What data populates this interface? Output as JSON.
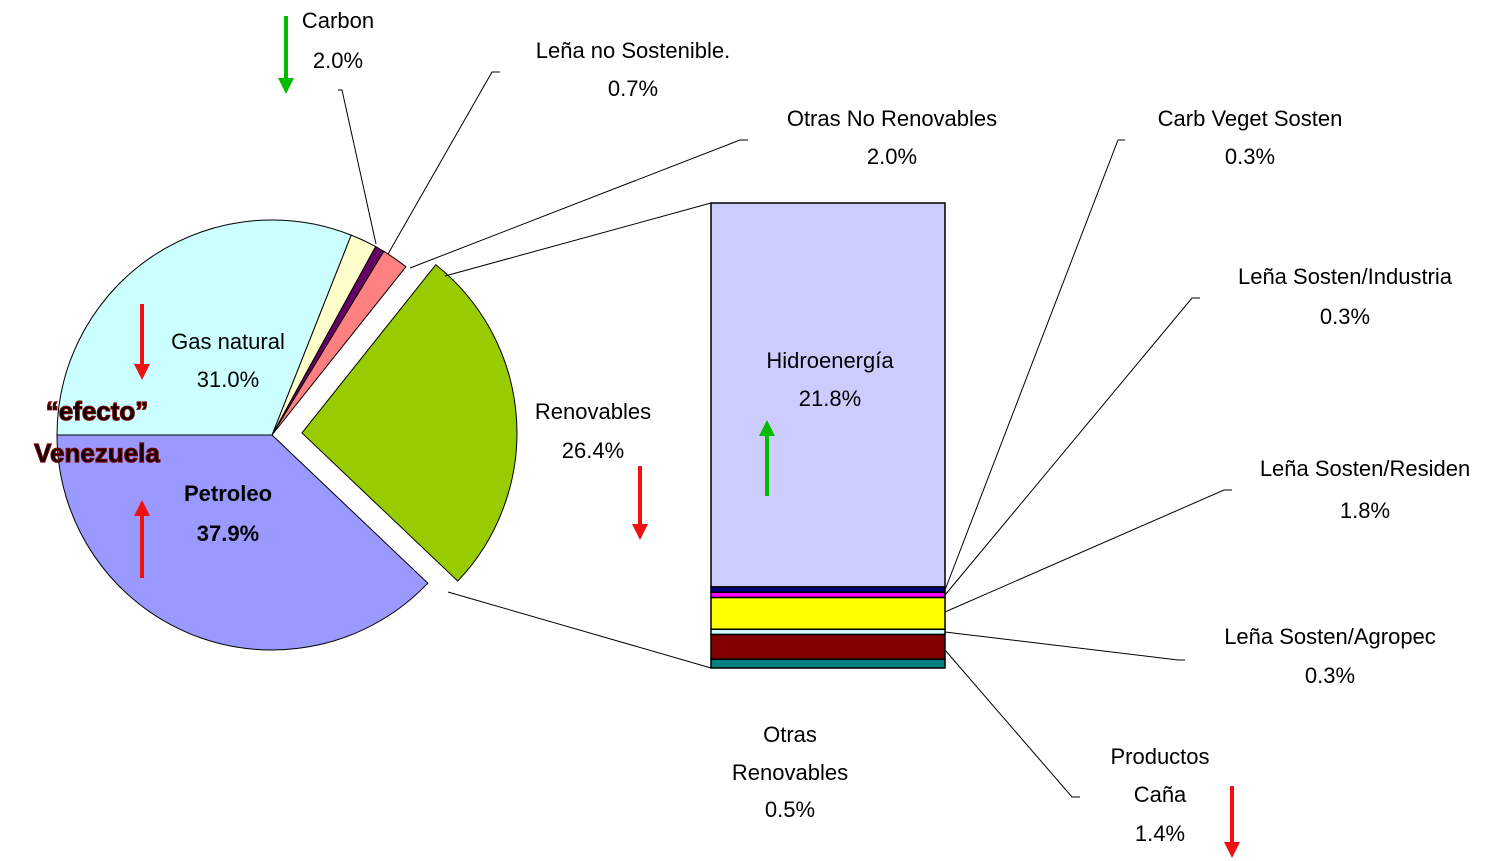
{
  "chart_data": [
    {
      "type": "pie",
      "categories": [
        "Petroleo",
        "Renovables",
        "Otras No Renovables",
        "Leña no Sostenible.",
        "Carbon",
        "Gas natural"
      ],
      "values": [
        37.9,
        26.4,
        2.0,
        0.7,
        2.0,
        31.0
      ],
      "value_labels": [
        "37.9%",
        "26.4%",
        "2.0%",
        "0.7%",
        "2.0%",
        "31.0%"
      ],
      "colors": [
        "#9999ff",
        "#99cc00",
        "#ff8080",
        "#660066",
        "#ffffcc",
        "#ccffff"
      ],
      "annotations": [
        "“efecto”",
        "Venezuela"
      ]
    },
    {
      "type": "stacked_bar",
      "categories": [
        "Hidroenergía",
        "Carb Veget Sosten",
        "Leña Sosten/Industria",
        "Leña Sosten/Residen",
        "Leña Sosten/Agropec",
        "Productos\nCaña",
        "Otras\nRenovables"
      ],
      "values": [
        21.8,
        0.3,
        0.3,
        1.8,
        0.3,
        1.4,
        0.5
      ],
      "value_labels": [
        "21.8%",
        "0.3%",
        "0.3%",
        "1.8%",
        "0.3%",
        "1.4%",
        "0.5%"
      ],
      "colors": [
        "#ccccff",
        "#000080",
        "#ff00ff",
        "#ffff00",
        "#ccffff",
        "#800000",
        "#008080"
      ]
    }
  ]
}
